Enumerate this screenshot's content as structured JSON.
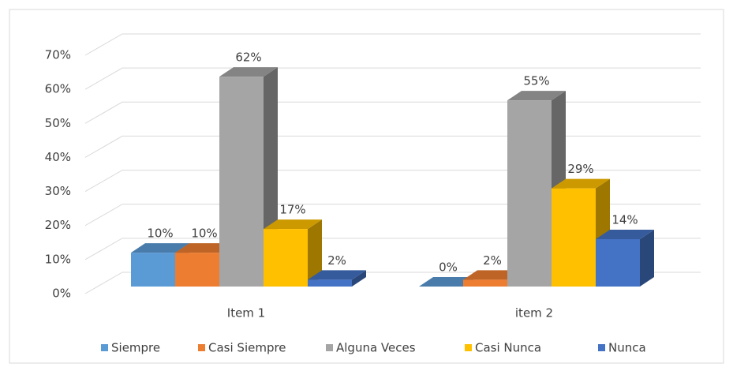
{
  "chart_data": {
    "type": "bar3d",
    "categories": [
      "Item 1",
      "item 2"
    ],
    "series": [
      {
        "name": "Siempre",
        "color": "#5b9bd5",
        "values": [
          10,
          0
        ],
        "value_labels": [
          "10%",
          "0%"
        ]
      },
      {
        "name": "Casi Siempre",
        "color": "#ed7d31",
        "values": [
          10,
          2
        ],
        "value_labels": [
          "10%",
          "2%"
        ]
      },
      {
        "name": "Alguna Veces",
        "color": "#a5a5a5",
        "values": [
          62,
          55
        ],
        "value_labels": [
          "62%",
          "55%"
        ]
      },
      {
        "name": "Casi Nunca",
        "color": "#ffc000",
        "values": [
          17,
          29
        ],
        "value_labels": [
          "17%",
          "29%"
        ]
      },
      {
        "name": "Nunca",
        "color": "#4472c4",
        "values": [
          2,
          14
        ],
        "value_labels": [
          "2%",
          "14%"
        ]
      }
    ],
    "ylim": [
      0,
      70
    ],
    "yticks": [
      {
        "value": 0,
        "label": "0%"
      },
      {
        "value": 10,
        "label": "10%"
      },
      {
        "value": 20,
        "label": "20%"
      },
      {
        "value": 30,
        "label": "30%"
      },
      {
        "value": 40,
        "label": "40%"
      },
      {
        "value": 50,
        "label": "50%"
      },
      {
        "value": 60,
        "label": "60%"
      },
      {
        "value": 70,
        "label": "70%"
      }
    ],
    "grid": true,
    "legend": "bottom"
  }
}
